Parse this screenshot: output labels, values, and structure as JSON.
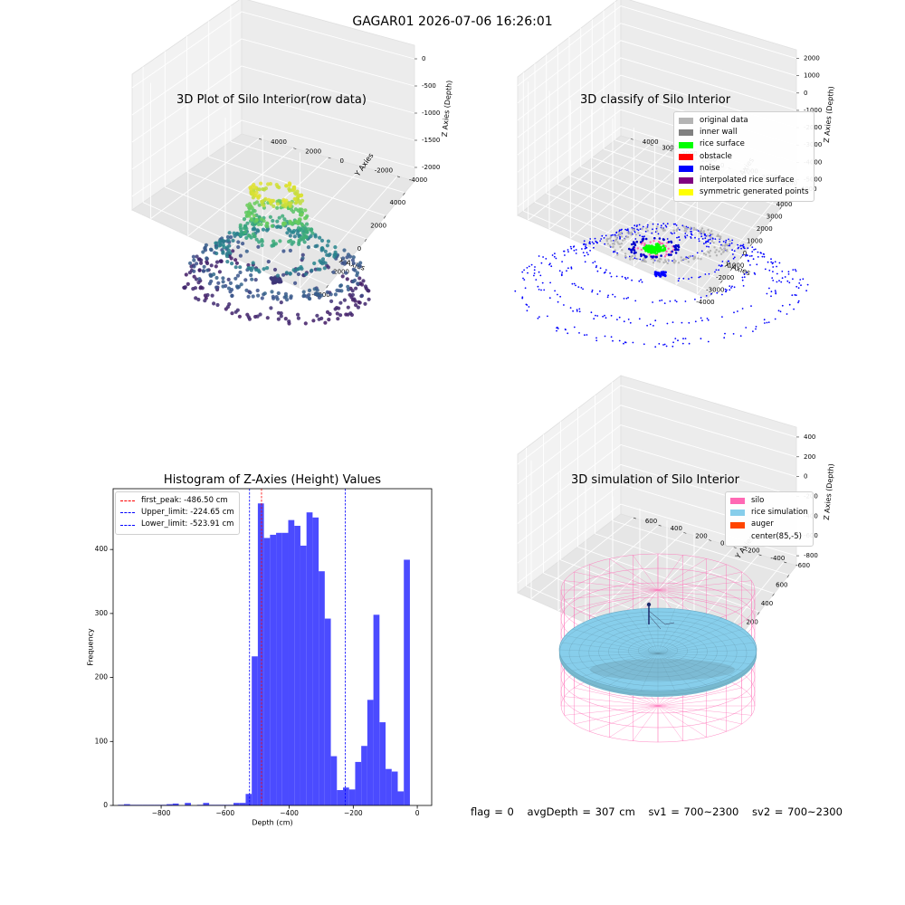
{
  "figure": {
    "suptitle": "GAGAR01 2026-07-06 16:26:01",
    "status": {
      "flag": "flag = 0",
      "avg_depth": "avgDepth = 307 cm",
      "sv1": "sv1 = 700~2300",
      "sv2": "sv2 = 700~2300"
    }
  },
  "chart_data": [
    {
      "type": "scatter3d",
      "title": "3D Plot of Silo Interior(row data)",
      "xlabel": "X Axies",
      "ylabel": "Y Axies",
      "zlabel": "Z Axies (Depth)",
      "x_ticks": [
        "-4000",
        "-2000",
        "0",
        "2000",
        "4000"
      ],
      "y_ticks": [
        "-4000",
        "-2000",
        "0",
        "2000",
        "4000"
      ],
      "z_ticks": [
        "-2000",
        "-1500",
        "-1000",
        "-500",
        "0"
      ],
      "colormap": "viridis",
      "xlim": [
        -4500,
        4500
      ],
      "ylim": [
        -4500,
        4500
      ],
      "zlim": [
        -2300,
        100
      ],
      "rings": [
        {
          "z": -350,
          "r": 1100
        },
        {
          "z": -700,
          "r": 1300
        },
        {
          "z": -1000,
          "r": 1500
        },
        {
          "z": -1350,
          "r": 2500
        },
        {
          "z": -1650,
          "r": 3600
        },
        {
          "z": -2000,
          "r": 3900
        }
      ]
    },
    {
      "type": "scatter3d",
      "title": "3D classify of Silo Interior",
      "xlabel": "X Axies",
      "ylabel": "Y Axies",
      "zlabel": "Z Axies (Depth)",
      "x_ticks": [
        "-4000",
        "-3000",
        "-2000",
        "-1000",
        "0",
        "1000",
        "2000",
        "3000",
        "4000"
      ],
      "y_ticks": [
        "-4000",
        "-3000",
        "-2000",
        "-1000",
        "0",
        "1000",
        "2000",
        "3000",
        "4000"
      ],
      "z_ticks": [
        "-5000",
        "-4000",
        "-3000",
        "-2000",
        "-1000",
        "0",
        "1000",
        "2000"
      ],
      "legend": [
        {
          "label": "original data",
          "color": "#b4b4b4"
        },
        {
          "label": "inner wall",
          "color": "#808080"
        },
        {
          "label": "rice surface",
          "color": "#00ff00"
        },
        {
          "label": "obstacle",
          "color": "#ff0000"
        },
        {
          "label": "noise",
          "color": "#0000ff"
        },
        {
          "label": "interpolated rice surface",
          "color": "#800080"
        },
        {
          "label": "symmetric generated points",
          "color": "#ffff00"
        }
      ]
    },
    {
      "type": "bar",
      "title": "Histogram of Z-Axies (Height) Values",
      "xlabel": "Depth (cm)",
      "ylabel": "Frequency",
      "xlim": [
        -950,
        45
      ],
      "ylim": [
        0,
        495
      ],
      "x_ticks": [
        -800,
        -600,
        -400,
        -200,
        0
      ],
      "y_ticks": [
        0,
        100,
        200,
        300,
        400
      ],
      "bar_color": "#4b4bff",
      "bin_start": -935,
      "bin_width": 19,
      "values": [
        1,
        2,
        1,
        1,
        1,
        1,
        1,
        1,
        2,
        3,
        0,
        4,
        0,
        1,
        4,
        1,
        1,
        1,
        1,
        4,
        4,
        18,
        233,
        472,
        418,
        423,
        426,
        426,
        446,
        437,
        406,
        458,
        450,
        366,
        292,
        77,
        24,
        28,
        25,
        68,
        93,
        165,
        298,
        130,
        57,
        53,
        22,
        384
      ],
      "vlines": [
        {
          "label": "first_peak: -486.50 cm",
          "x": -486.5,
          "color": "#ff0000"
        },
        {
          "label": "Upper_limit: -224.65 cm",
          "x": -224.65,
          "color": "#0000ff"
        },
        {
          "label": "Lower_limit: -523.91 cm",
          "x": -523.91,
          "color": "#0000ff"
        }
      ]
    },
    {
      "type": "surface3d",
      "title": "3D simulation of Silo Interior",
      "xlabel": "X Axies",
      "ylabel": "Y Axies",
      "zlabel": "Z Axies (Depth)",
      "x_ticks": [
        "-400",
        "-200",
        "0",
        "200",
        "400",
        "600"
      ],
      "y_ticks": [
        "-600",
        "-400",
        "-200",
        "0",
        "200",
        "400",
        "600"
      ],
      "z_ticks": [
        "-800",
        "-600",
        "-400",
        "-200",
        "0",
        "200",
        "400"
      ],
      "legend": [
        {
          "label": "silo",
          "color": "#ff69b4"
        },
        {
          "label": "rice simulation",
          "color": "#87ceeb"
        },
        {
          "label": "auger",
          "color": "#ff4500"
        },
        {
          "label": "center(85,-5)",
          "color": ""
        }
      ]
    }
  ]
}
